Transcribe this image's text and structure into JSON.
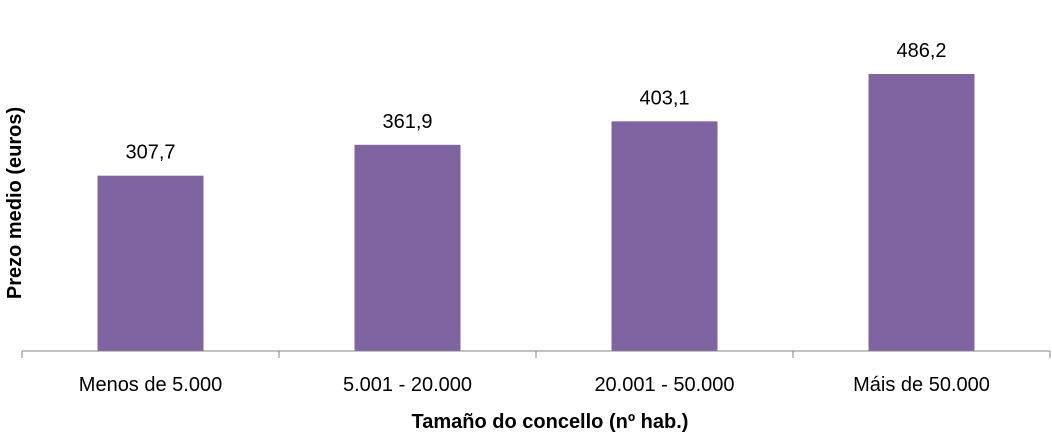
{
  "chart_data": {
    "type": "bar",
    "categories": [
      "Menos de 5.000",
      "5.001 - 20.000",
      "20.001 - 50.000",
      "Máis de 50.000"
    ],
    "values": [
      307.7,
      361.9,
      403.1,
      486.2
    ],
    "value_labels": [
      "307,7",
      "361,9",
      "403,1",
      "486,2"
    ],
    "title": "",
    "xlabel": "Tamaño do concello (nº hab.)",
    "ylabel": "Prezo medio (euros)",
    "ylim": [
      0,
      550
    ],
    "grid": false,
    "legend": "none",
    "bar_color": "#8064a2"
  }
}
